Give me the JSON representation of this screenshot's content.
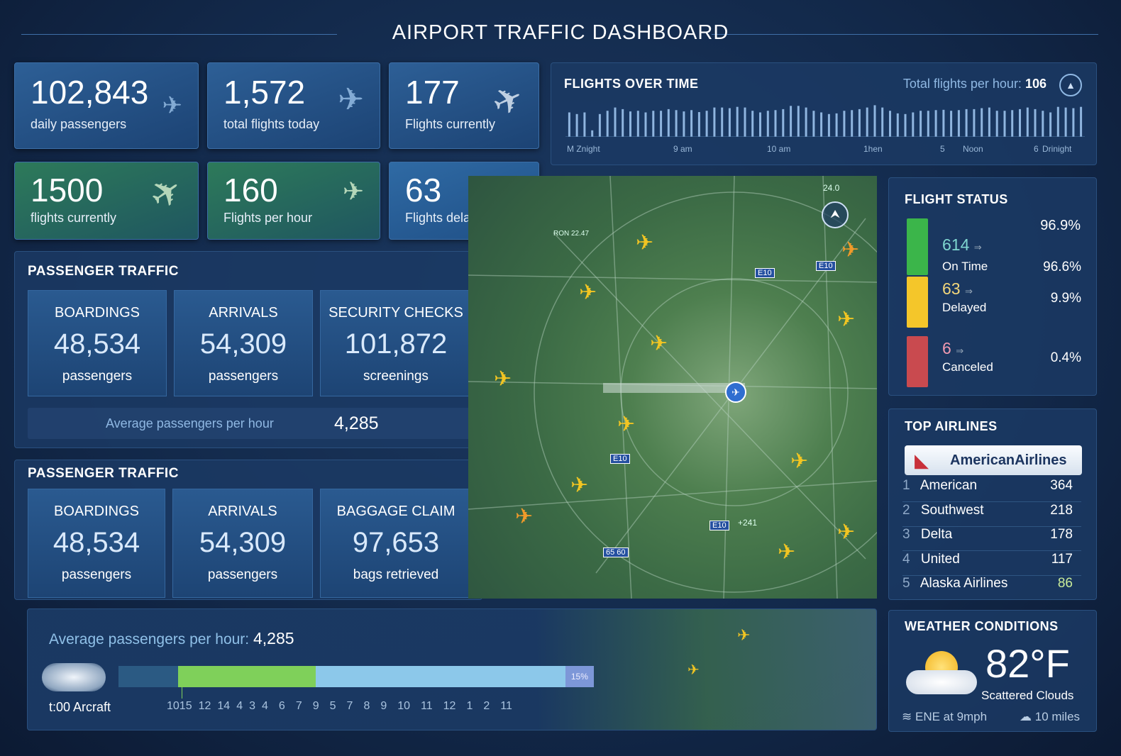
{
  "title": "AIRPORT TRAFFIC  DASHBOARD",
  "kpis": [
    {
      "value": "102,843",
      "label": "daily passengers"
    },
    {
      "value": "1,572",
      "label": "total flights today"
    },
    {
      "value": "177",
      "label": "Flights currently"
    },
    {
      "value": "1500",
      "label": "flights currently"
    },
    {
      "value": "160",
      "label": "Flights per hour"
    },
    {
      "value": "63",
      "label": "Flights delayed"
    }
  ],
  "flights_over_time": {
    "title": "FLIGHTS OVER TIME",
    "total_label": "Total flights per hour:",
    "total_value": "106",
    "x_labels": [
      "M Znight",
      "9 am",
      "10 am",
      "1hen",
      "5",
      "Noon",
      "6",
      "Drinight"
    ]
  },
  "chart_data": {
    "type": "bar",
    "title": "FLIGHTS OVER TIME",
    "x_tick_labels": [
      "M Znight",
      "9 am",
      "10 am",
      "1hen",
      "5",
      "Noon",
      "6",
      "Drinight"
    ],
    "values_relative": [
      0.75,
      0.7,
      0.75,
      0.2,
      0.7,
      0.8,
      0.9,
      0.85,
      0.78,
      0.8,
      0.75,
      0.8,
      0.8,
      0.85,
      0.82,
      0.78,
      0.82,
      0.76,
      0.8,
      0.9,
      0.9,
      0.88,
      0.92,
      0.9,
      0.8,
      0.75,
      0.8,
      0.82,
      0.85,
      0.95,
      0.95,
      0.9,
      0.8,
      0.75,
      0.7,
      0.72,
      0.8,
      0.82,
      0.85,
      0.9,
      0.97,
      0.9,
      0.8,
      0.72,
      0.7,
      0.75,
      0.8,
      0.8,
      0.82,
      0.83,
      0.8,
      0.82,
      0.85,
      0.85,
      0.88,
      0.9,
      0.8,
      0.8,
      0.82,
      0.85,
      0.9,
      0.85,
      0.8,
      0.75,
      0.92,
      0.9,
      0.88,
      0.92
    ],
    "grid": false,
    "legend": "none"
  },
  "passenger_traffic_1": {
    "title": "PASSENGER TRAFFIC",
    "cards": [
      {
        "head": "BOARDINGS",
        "value": "48,534",
        "unit": "passengers"
      },
      {
        "head": "ARRIVALS",
        "value": "54,309",
        "unit": "passengers"
      },
      {
        "head": "SECURITY CHECKS",
        "value": "101,872",
        "unit": "screenings"
      }
    ],
    "avg_label": "Average passengers per hour",
    "avg_value": "4,285"
  },
  "passenger_traffic_2": {
    "title": "PASSENGER TRAFFIC",
    "cards": [
      {
        "head": "BOARDINGS",
        "value": "48,534",
        "unit": "passengers"
      },
      {
        "head": "ARRIVALS",
        "value": "54,309",
        "unit": "passengers"
      },
      {
        "head": "BAGGAGE CLAIM",
        "value": "97,653",
        "unit": "bags retrieved"
      }
    ]
  },
  "bottom": {
    "avg_label": "Average passengers per hour:",
    "avg_value": "4,285",
    "time_label": "t:00 Arcraft",
    "segments": [
      {
        "fraction": 0.125,
        "color": "#2b5a83"
      },
      {
        "fraction": 0.29,
        "color": "#7fd05a"
      },
      {
        "fraction": 0.525,
        "color": "#8cc8ea"
      },
      {
        "fraction": 0.06,
        "color": "#7d97d8",
        "label": "15%"
      }
    ],
    "ticks": [
      "1015",
      "12",
      "14",
      "4",
      "3",
      "4",
      "6",
      "7",
      "9",
      "5",
      "7",
      "8",
      "9",
      "10",
      "11",
      "12",
      "1",
      "2",
      "11"
    ]
  },
  "map": {
    "labels": [
      "24.0",
      "E10",
      "E10",
      "E10",
      "E10",
      "65 60",
      "+241",
      "RON 22.47"
    ]
  },
  "flight_status": {
    "title": "FLIGHT STATUS",
    "top_pct": "96.9%",
    "items": [
      {
        "count": "614",
        "label": "On Time",
        "pct": "96.6%",
        "color": "#3bb54a",
        "count_color": "#7fd6d0"
      },
      {
        "count": "63",
        "label": "Delayed",
        "pct": "9.9%",
        "color": "#f4c62a",
        "count_color": "#f3d67a"
      },
      {
        "count": "6",
        "label": "Canceled",
        "pct": "0.4%",
        "color": "#c94a4f",
        "count_color": "#f19ab0"
      }
    ]
  },
  "top_airlines": {
    "title": "TOP AIRLINES",
    "logo_text": "AmericanAirlines",
    "items": [
      {
        "rank": "1",
        "name": "American",
        "count": "364"
      },
      {
        "rank": "2",
        "name": "Southwest",
        "count": "218"
      },
      {
        "rank": "3",
        "name": "Delta",
        "count": "178"
      },
      {
        "rank": "4",
        "name": "United",
        "count": "117"
      },
      {
        "rank": "5",
        "name": "Alaska Airlines",
        "count": "86"
      }
    ]
  },
  "weather": {
    "title": "WEATHER CONDITIONS",
    "temp": "82°F",
    "condition": "Scattered Clouds",
    "wind": "ENE at 9mph",
    "visibility": "10 miles"
  }
}
